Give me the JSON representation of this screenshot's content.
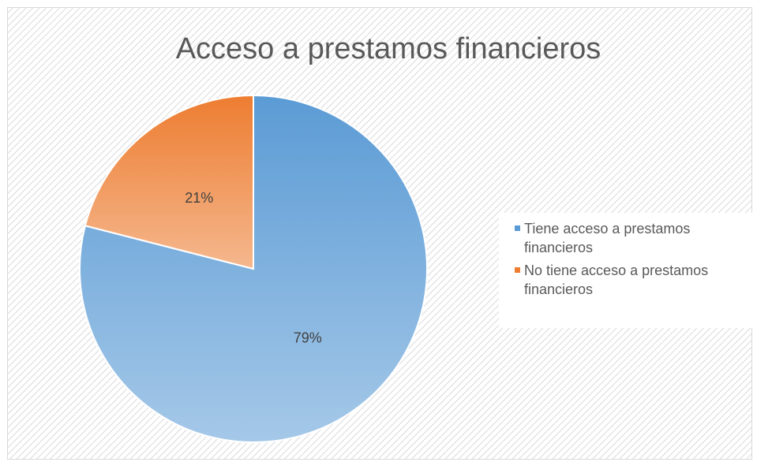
{
  "chart_data": {
    "type": "pie",
    "title": "Acceso a prestamos financieros",
    "categories": [
      "Tiene acceso a prestamos financieros",
      "No tiene acceso a prestamos financieros"
    ],
    "values": [
      79,
      21
    ],
    "value_labels": [
      "79%",
      "21%"
    ],
    "colors": [
      "#5b9bd5",
      "#ed7d31"
    ],
    "legend": "right"
  }
}
